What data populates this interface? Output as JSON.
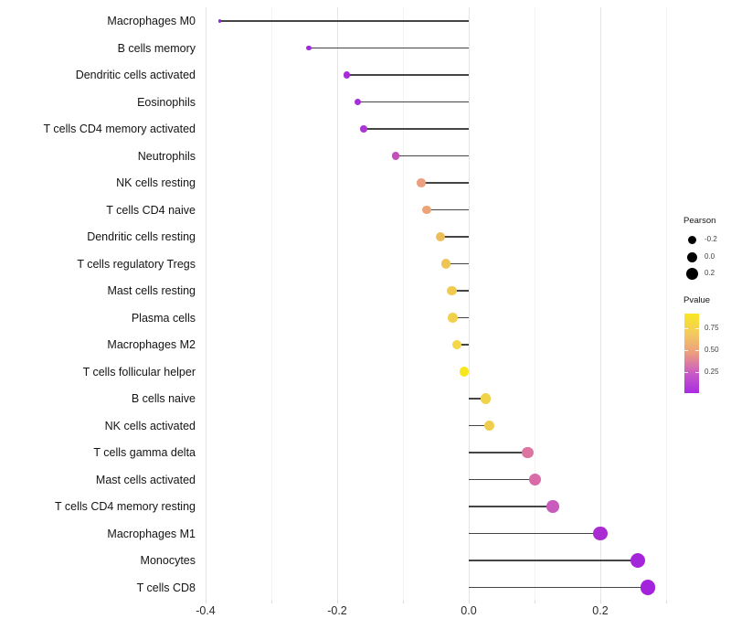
{
  "chart_data": {
    "type": "scatter",
    "variant": "lollipop",
    "title": "",
    "xlabel": "",
    "ylabel": "",
    "xlim": [
      -0.404,
      0.322
    ],
    "grid": true,
    "legend_position": "right",
    "x_major_ticks": [
      -0.4,
      -0.2,
      0.0,
      0.2
    ],
    "x_major_tick_labels": [
      "-0.4",
      "-0.2",
      "0.0",
      "0.2"
    ],
    "x_minor_ticks": [
      -0.3,
      -0.1,
      0.1,
      0.3
    ],
    "stem_color": "#454545",
    "points": [
      {
        "label": "Macrophages M0",
        "pearson": -0.378,
        "color": "#8C2BE0"
      },
      {
        "label": "B cells memory",
        "pearson": -0.243,
        "color": "#A428DC"
      },
      {
        "label": "Dendritic cells activated",
        "pearson": -0.186,
        "color": "#A72CD8"
      },
      {
        "label": "Eosinophils",
        "pearson": -0.169,
        "color": "#A72FD6"
      },
      {
        "label": "T cells CD4 memory activated",
        "pearson": -0.16,
        "color": "#AB36D3"
      },
      {
        "label": "Neutrophils",
        "pearson": -0.111,
        "color": "#C44FBB"
      },
      {
        "label": "NK cells resting",
        "pearson": -0.072,
        "color": "#EC9E80"
      },
      {
        "label": "T cells CD4 naive",
        "pearson": -0.064,
        "color": "#EDA378"
      },
      {
        "label": "Dendritic cells resting",
        "pearson": -0.043,
        "color": "#ECBD5B"
      },
      {
        "label": "T cells regulatory  Tregs",
        "pearson": -0.035,
        "color": "#EEC455"
      },
      {
        "label": "Mast cells resting",
        "pearson": -0.026,
        "color": "#F0CB4F"
      },
      {
        "label": "Plasma cells",
        "pearson": -0.024,
        "color": "#F1D04B"
      },
      {
        "label": "Macrophages M2",
        "pearson": -0.018,
        "color": "#F3D746"
      },
      {
        "label": "T cells follicular helper",
        "pearson": -0.007,
        "color": "#F8E71E"
      },
      {
        "label": "B cells naive",
        "pearson": 0.026,
        "color": "#F1D349"
      },
      {
        "label": "NK cells activated",
        "pearson": 0.031,
        "color": "#EFCE4F"
      },
      {
        "label": "T cells gamma delta",
        "pearson": 0.09,
        "color": "#DC76A0"
      },
      {
        "label": "Mast cells activated",
        "pearson": 0.101,
        "color": "#D96BA8"
      },
      {
        "label": "T cells CD4 memory resting",
        "pearson": 0.128,
        "color": "#C85BBC"
      },
      {
        "label": "Macrophages M1",
        "pearson": 0.2,
        "color": "#AA2BD2"
      },
      {
        "label": "Monocytes",
        "pearson": 0.257,
        "color": "#A526DA"
      },
      {
        "label": "T cells CD8",
        "pearson": 0.272,
        "color": "#A322DC"
      }
    ],
    "legend": {
      "size": {
        "title": "Pearson",
        "entries": [
          {
            "label": "-0.2",
            "diameter": 9
          },
          {
            "label": "0.0",
            "diameter": 11
          },
          {
            "label": "0.2",
            "diameter": 13
          }
        ]
      },
      "color": {
        "title": "Pvalue",
        "gradient_bottom_to_top": [
          {
            "pos": 0.0,
            "color": "#A92BE2"
          },
          {
            "pos": 0.25,
            "color": "#C95BC5"
          },
          {
            "pos": 0.5,
            "color": "#EC9C80"
          },
          {
            "pos": 0.75,
            "color": "#F2CB5F"
          },
          {
            "pos": 1.0,
            "color": "#F9E721"
          }
        ],
        "ticks": [
          {
            "label": "0.75",
            "frac_from_top": 0.18
          },
          {
            "label": "0.50",
            "frac_from_top": 0.46
          },
          {
            "label": "0.25",
            "frac_from_top": 0.74
          }
        ]
      }
    }
  }
}
